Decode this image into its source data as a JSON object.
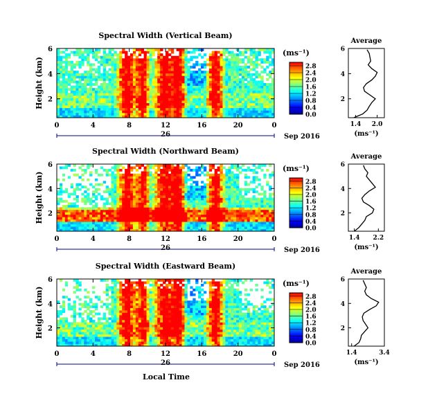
{
  "figure": {
    "xlabel_bottom": "Local Time",
    "colorbar_unit": "(ms⁻¹)",
    "colors": {
      "jet_stops": [
        "#00008f",
        "#0000ff",
        "#0080ff",
        "#00ffff",
        "#80ff80",
        "#ffff00",
        "#ff8000",
        "#ff0000"
      ],
      "background": "#ffffff",
      "axis": "#000000",
      "date_axis": "#000080"
    }
  },
  "chart_data": [
    {
      "type": "heatmap",
      "title": "Spectral Width (Vertical Beam)",
      "ylabel": "Height (km)",
      "y_ticks": [
        "2",
        "4",
        "6"
      ],
      "ylim": [
        0.5,
        6
      ],
      "x_ticks": [
        "0",
        "4",
        "8",
        "12",
        "16",
        "20",
        "0"
      ],
      "xlim": [
        0,
        24
      ],
      "date_day": "26",
      "date_month": "Sep 2016",
      "colorbar": {
        "ticks": [
          "0.0",
          "0.4",
          "0.8",
          "1.2",
          "1.6",
          "2.0",
          "2.4",
          "2.8"
        ],
        "range": [
          0.0,
          3.0
        ]
      },
      "profile": {
        "title": "Average",
        "xlabel": "(ms⁻¹)",
        "x_ticks": [
          "1.4",
          "2.0"
        ],
        "xlim": [
          1.2,
          2.2
        ],
        "y_ticks": [
          "2",
          "4",
          "6"
        ],
        "ylim": [
          0.5,
          6
        ],
        "height": [
          0.5,
          0.8,
          1.1,
          1.4,
          1.7,
          2.0,
          2.3,
          2.6,
          2.9,
          3.2,
          3.5,
          3.8,
          4.1,
          4.4,
          4.7,
          5.0,
          5.3,
          5.6,
          5.9
        ],
        "value": [
          1.35,
          1.6,
          1.72,
          1.78,
          1.85,
          1.95,
          1.8,
          1.65,
          1.62,
          1.7,
          1.85,
          1.95,
          2.0,
          1.85,
          1.75,
          1.82,
          1.8,
          1.78,
          1.72
        ]
      }
    },
    {
      "type": "heatmap",
      "title": "Spectral Width (Northward Beam)",
      "ylabel": "Height (km)",
      "y_ticks": [
        "2",
        "4",
        "6"
      ],
      "ylim": [
        0.5,
        6
      ],
      "x_ticks": [
        "0",
        "4",
        "8",
        "12",
        "16",
        "20",
        "0"
      ],
      "xlim": [
        0,
        24
      ],
      "date_day": "26",
      "date_month": "Sep 2016",
      "colorbar": {
        "ticks": [
          "0.0",
          "0.4",
          "0.8",
          "1.2",
          "1.6",
          "2.0",
          "2.4",
          "2.8"
        ],
        "range": [
          0.0,
          3.0
        ]
      },
      "profile": {
        "title": "Average",
        "xlabel": "(ms⁻¹)",
        "x_ticks": [
          "1.4",
          "2.2"
        ],
        "xlim": [
          1.2,
          2.4
        ],
        "y_ticks": [
          "2",
          "4",
          "6"
        ],
        "ylim": [
          0.5,
          6
        ],
        "height": [
          0.5,
          0.8,
          1.1,
          1.4,
          1.7,
          2.0,
          2.3,
          2.6,
          2.9,
          3.2,
          3.5,
          3.8,
          4.1,
          4.4,
          4.7,
          5.0,
          5.3,
          5.6,
          5.9
        ],
        "value": [
          1.4,
          1.55,
          1.65,
          1.75,
          1.8,
          2.0,
          2.05,
          1.9,
          1.7,
          1.65,
          1.75,
          1.9,
          2.1,
          2.0,
          1.9,
          1.8,
          1.85,
          1.75,
          1.7
        ]
      }
    },
    {
      "type": "heatmap",
      "title": "Spectral Width (Eastward Beam)",
      "ylabel": "Height (km)",
      "y_ticks": [
        "2",
        "4",
        "6"
      ],
      "ylim": [
        0.5,
        6
      ],
      "x_ticks": [
        "0",
        "4",
        "8",
        "12",
        "16",
        "20",
        "0"
      ],
      "xlim": [
        0,
        24
      ],
      "date_day": "26",
      "date_month": "Sep 2016",
      "colorbar": {
        "ticks": [
          "0.0",
          "0.4",
          "0.8",
          "1.2",
          "1.6",
          "2.0",
          "2.4",
          "2.8"
        ],
        "range": [
          0.0,
          3.0
        ]
      },
      "profile": {
        "title": "Average",
        "xlabel": "(ms⁻¹)",
        "x_ticks": [
          "1.4",
          "3.4"
        ],
        "xlim": [
          1.2,
          3.4
        ],
        "y_ticks": [
          "2",
          "4",
          "6"
        ],
        "ylim": [
          0.5,
          6
        ],
        "height": [
          0.5,
          0.8,
          1.1,
          1.4,
          1.7,
          2.0,
          2.3,
          2.6,
          2.9,
          3.2,
          3.5,
          3.8,
          4.1,
          4.4,
          4.7,
          5.0,
          5.3,
          5.6,
          5.9
        ],
        "value": [
          1.55,
          1.85,
          1.95,
          2.0,
          2.2,
          2.4,
          2.25,
          2.1,
          2.05,
          2.15,
          2.5,
          2.9,
          3.05,
          2.6,
          2.3,
          2.2,
          2.3,
          2.2,
          2.1
        ]
      }
    }
  ]
}
